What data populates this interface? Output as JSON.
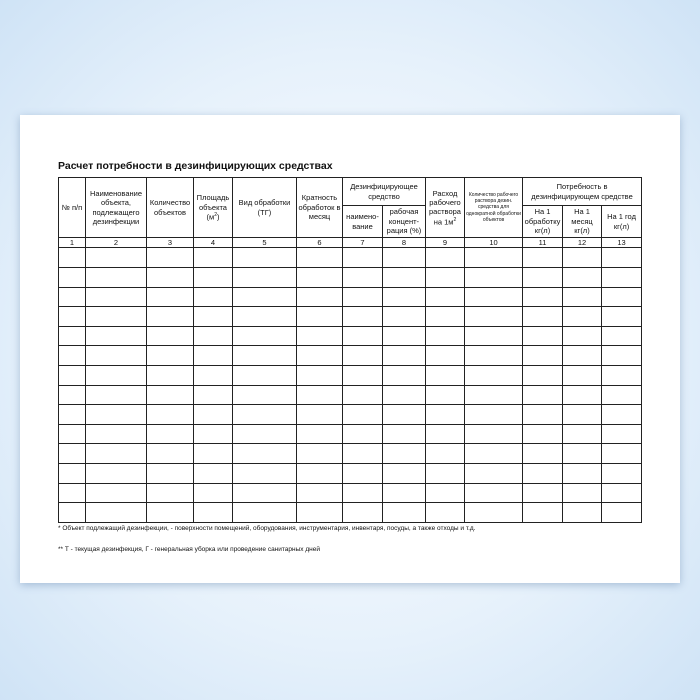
{
  "title": "Расчет потребности в дезинфицирующих средствах",
  "headers": {
    "h1": "№ п/п",
    "h2": "Наименование объекта, подлежащего дезинфекции",
    "h3": "Количество объектов",
    "h4": "Площадь объекта",
    "h4_unit": "(м",
    "h4_sup": "2",
    "h4_close": ")",
    "h5": "Вид обработки (ТГ)",
    "h6": "Кратность обработок в месяц",
    "h7_group": "Дезинфицирующее средство",
    "h7": "наимено-вание",
    "h8": "рабочая концент-рация (%)",
    "h9": "Расход рабочего раствора на 1м",
    "h9_sup": "2",
    "h10": "Количество рабочего раствора дезин. средства для однократной обработки объектов",
    "h11_group": "Потребность в дезинфицирующем средстве",
    "h11": "На 1 обработку кг(л)",
    "h12": "На 1 месяц кг(л)",
    "h13": "На 1 год кг(л)"
  },
  "column_numbers": [
    "1",
    "2",
    "3",
    "4",
    "5",
    "6",
    "7",
    "8",
    "9",
    "10",
    "11",
    "12",
    "13"
  ],
  "empty_rows": 14,
  "notes": [
    "* Объект подлежащий дезинфекции, - поверхности помещений, оборудования, инструментария, инвентаря, посуды, а также отходы и т.д.",
    "** Т - текущая дезинфекция, Г - генеральная уборка или проведение санитарных дней"
  ]
}
